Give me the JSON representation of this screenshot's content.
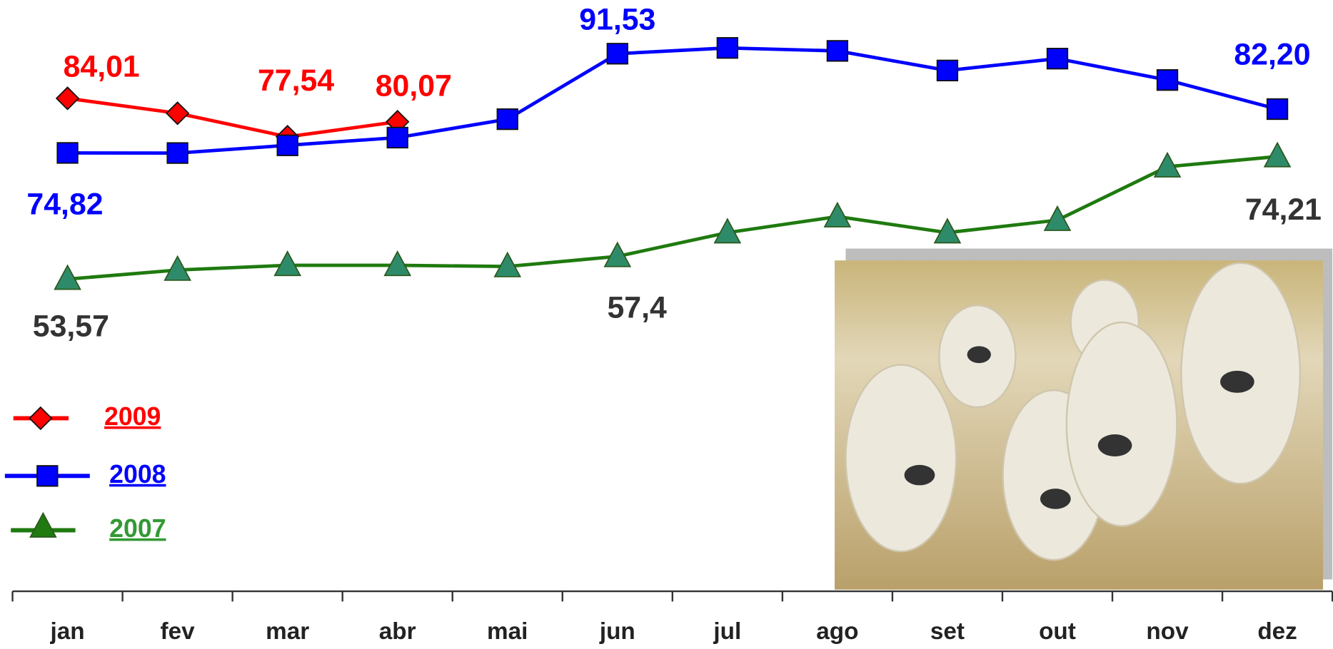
{
  "chart_data": {
    "type": "line",
    "categories": [
      "jan",
      "fev",
      "mar",
      "abr",
      "mai",
      "jun",
      "jul",
      "ago",
      "set",
      "out",
      "nov",
      "dez"
    ],
    "ylim": [
      0,
      100
    ],
    "series": [
      {
        "name": "2009",
        "color": "#ff0000",
        "marker": "diamond",
        "marker_color": "#ff0000",
        "label_color": "#ff0000",
        "values": [
          84.01,
          81.5,
          77.54,
          80.07,
          null,
          null,
          null,
          null,
          null,
          null,
          null,
          null
        ],
        "value_labels": [
          "84,01",
          null,
          "77,54",
          "80,07",
          null,
          null,
          null,
          null,
          null,
          null,
          null,
          null
        ]
      },
      {
        "name": "2008",
        "color": "#0000ff",
        "marker": "square",
        "marker_color": "#0000ff",
        "label_color": "#0000ff",
        "values": [
          74.82,
          74.8,
          76.1,
          77.4,
          80.5,
          91.53,
          92.5,
          92.0,
          88.7,
          90.7,
          87.1,
          82.2
        ],
        "value_labels": [
          "74,82",
          null,
          null,
          null,
          null,
          "91,53",
          null,
          null,
          null,
          null,
          null,
          "82,20"
        ]
      },
      {
        "name": "2007",
        "color": "#1f7a0f",
        "marker": "triangle",
        "marker_color": "#2e8b6a",
        "label_color": "#333333",
        "legend_color": "#339933",
        "values": [
          53.57,
          55.1,
          55.9,
          55.9,
          55.7,
          57.4,
          61.4,
          64.1,
          61.4,
          63.5,
          72.5,
          74.21
        ],
        "value_labels": [
          "53,57",
          null,
          null,
          null,
          null,
          "57,4",
          null,
          null,
          null,
          null,
          null,
          "74,21"
        ]
      }
    ]
  }
}
